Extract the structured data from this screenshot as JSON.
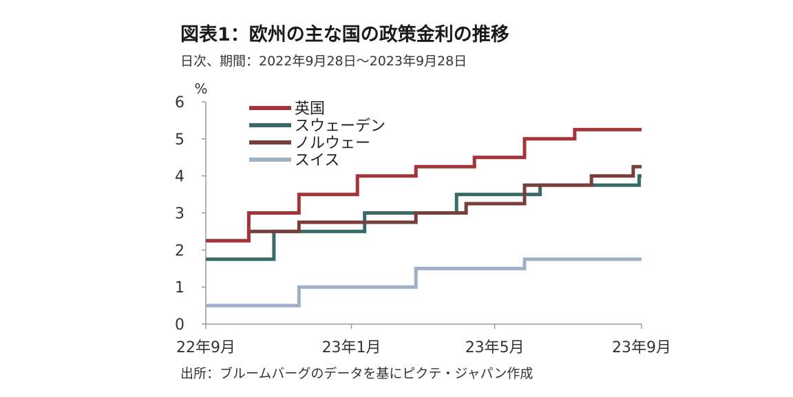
{
  "title": "図表1：欧州の主な国の政策金利の推移",
  "subtitle": "日次、期間：2022年9月28日～2023年9月28日",
  "source": "出所：ブルームバーグのデータを基にピクテ・ジャパン作成",
  "chart_data": {
    "type": "line",
    "step": true,
    "title": "図表1：欧州の主な国の政策金利の推移",
    "ylabel": "%",
    "ylim": [
      0,
      6
    ],
    "yticks": [
      0,
      1,
      2,
      3,
      4,
      5,
      6
    ],
    "xlim": [
      "2022-09-28",
      "2023-09-28"
    ],
    "xticks": [
      {
        "date": "2022-09-28",
        "label": "22年9月"
      },
      {
        "date": "2023-01-28",
        "label": "23年1月"
      },
      {
        "date": "2023-05-28",
        "label": "23年5月"
      },
      {
        "date": "2023-09-28",
        "label": "23年9月"
      }
    ],
    "grid": false,
    "legend_position": "top-left",
    "series": [
      {
        "name": "英国",
        "color": "#a3343a",
        "points": [
          [
            "2022-09-28",
            2.25
          ],
          [
            "2022-11-03",
            3.0
          ],
          [
            "2022-12-15",
            3.5
          ],
          [
            "2023-02-02",
            4.0
          ],
          [
            "2023-03-23",
            4.25
          ],
          [
            "2023-05-11",
            4.5
          ],
          [
            "2023-06-22",
            5.0
          ],
          [
            "2023-08-03",
            5.25
          ],
          [
            "2023-09-28",
            5.25
          ]
        ]
      },
      {
        "name": "スウェーデン",
        "color": "#3a6b6b",
        "points": [
          [
            "2022-09-28",
            1.75
          ],
          [
            "2022-11-24",
            2.5
          ],
          [
            "2023-02-08",
            3.0
          ],
          [
            "2023-04-26",
            3.5
          ],
          [
            "2023-07-05",
            3.75
          ],
          [
            "2023-09-26",
            4.0
          ],
          [
            "2023-09-28",
            4.0
          ]
        ]
      },
      {
        "name": "ノルウェー",
        "color": "#7a3e38",
        "points": [
          [
            "2022-09-28",
            2.25
          ],
          [
            "2022-11-03",
            2.5
          ],
          [
            "2022-12-15",
            2.75
          ],
          [
            "2023-03-23",
            3.0
          ],
          [
            "2023-05-04",
            3.25
          ],
          [
            "2023-06-22",
            3.75
          ],
          [
            "2023-08-17",
            4.0
          ],
          [
            "2023-09-21",
            4.25
          ],
          [
            "2023-09-28",
            4.25
          ]
        ]
      },
      {
        "name": "スイス",
        "color": "#9fb0c6",
        "points": [
          [
            "2022-09-28",
            0.5
          ],
          [
            "2022-12-15",
            1.0
          ],
          [
            "2023-03-23",
            1.5
          ],
          [
            "2023-06-22",
            1.75
          ],
          [
            "2023-09-28",
            1.75
          ]
        ]
      }
    ]
  }
}
